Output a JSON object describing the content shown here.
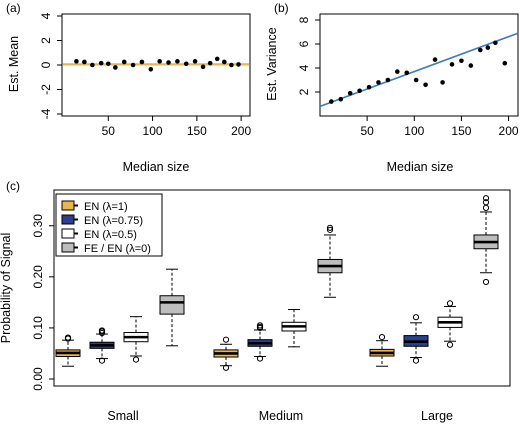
{
  "chart_data": [
    {
      "panel_label": "(a)",
      "type": "scatter",
      "xlabel": "Median size",
      "ylabel": "Est. Mean",
      "xlim": [
        0,
        210
      ],
      "ylim": [
        -4,
        4
      ],
      "x_ticks": [
        "50",
        "100",
        "150",
        "200"
      ],
      "y_ticks": [
        "-4",
        "-2",
        "0",
        "2",
        "4"
      ],
      "reference_line": {
        "y": 0.05,
        "color": "#e9b64f"
      },
      "points": [
        {
          "x": 14,
          "y": 0.3
        },
        {
          "x": 23,
          "y": 0.25
        },
        {
          "x": 32,
          "y": 0.0
        },
        {
          "x": 42,
          "y": 0.15
        },
        {
          "x": 50,
          "y": 0.1
        },
        {
          "x": 58,
          "y": -0.2
        },
        {
          "x": 68,
          "y": 0.25
        },
        {
          "x": 78,
          "y": 0.0
        },
        {
          "x": 88,
          "y": 0.25
        },
        {
          "x": 98,
          "y": -0.35
        },
        {
          "x": 108,
          "y": 0.3
        },
        {
          "x": 118,
          "y": 0.2
        },
        {
          "x": 128,
          "y": 0.3
        },
        {
          "x": 138,
          "y": 0.1
        },
        {
          "x": 148,
          "y": 0.3
        },
        {
          "x": 157,
          "y": -0.15
        },
        {
          "x": 165,
          "y": 0.15
        },
        {
          "x": 173,
          "y": 0.5
        },
        {
          "x": 181,
          "y": 0.25
        },
        {
          "x": 189,
          "y": 0.0
        },
        {
          "x": 197,
          "y": 0.05
        }
      ]
    },
    {
      "panel_label": "(b)",
      "type": "scatter",
      "xlabel": "Median size",
      "ylabel": "Est. Variance",
      "xlim": [
        0,
        210
      ],
      "ylim": [
        0,
        8
      ],
      "x_ticks": [
        "50",
        "100",
        "150",
        "200"
      ],
      "y_ticks": [
        "2",
        "4",
        "6",
        "8"
      ],
      "fit_line": {
        "x0": 0,
        "y0": 0.8,
        "x1": 210,
        "y1": 6.9,
        "color": "#3b7dbb"
      },
      "points": [
        {
          "x": 12,
          "y": 1.2
        },
        {
          "x": 22,
          "y": 1.4
        },
        {
          "x": 32,
          "y": 1.9
        },
        {
          "x": 42,
          "y": 2.1
        },
        {
          "x": 52,
          "y": 2.4
        },
        {
          "x": 62,
          "y": 2.8
        },
        {
          "x": 72,
          "y": 3.0
        },
        {
          "x": 82,
          "y": 3.7
        },
        {
          "x": 92,
          "y": 3.6
        },
        {
          "x": 102,
          "y": 3.0
        },
        {
          "x": 112,
          "y": 2.6
        },
        {
          "x": 122,
          "y": 4.7
        },
        {
          "x": 130,
          "y": 2.8
        },
        {
          "x": 140,
          "y": 4.3
        },
        {
          "x": 150,
          "y": 4.6
        },
        {
          "x": 160,
          "y": 4.2
        },
        {
          "x": 170,
          "y": 5.5
        },
        {
          "x": 178,
          "y": 5.7
        },
        {
          "x": 186,
          "y": 6.1
        },
        {
          "x": 196,
          "y": 4.4
        }
      ]
    },
    {
      "panel_label": "(c)",
      "type": "boxplot",
      "ylabel": "Probability of Signal",
      "ylim": [
        0,
        0.37
      ],
      "y_ticks": [
        "0.00",
        "0.10",
        "0.20",
        "0.30"
      ],
      "groups": [
        "Small",
        "Medium",
        "Large"
      ],
      "legend_position": "top-left",
      "series": [
        {
          "name": "EN (λ=1)",
          "color": "#e9b64f"
        },
        {
          "name": "EN (λ=0.75)",
          "color": "#2b3f8c"
        },
        {
          "name": "EN (λ=0.5)",
          "color": "#ffffff"
        },
        {
          "name": "FE / EN (λ=0)",
          "color": "#bdbdbd"
        }
      ],
      "boxes": [
        [
          {
            "min": 0.025,
            "q1": 0.044,
            "median": 0.051,
            "q3": 0.057,
            "max": 0.076,
            "outliers": [
              0.079,
              0.081
            ]
          },
          {
            "min": 0.04,
            "q1": 0.06,
            "median": 0.066,
            "q3": 0.072,
            "max": 0.088,
            "outliers": [
              0.036,
              0.09,
              0.093,
              0.095
            ]
          },
          {
            "min": 0.045,
            "q1": 0.073,
            "median": 0.082,
            "q3": 0.091,
            "max": 0.122,
            "outliers": [
              0.038
            ]
          },
          {
            "min": 0.065,
            "q1": 0.127,
            "median": 0.15,
            "q3": 0.163,
            "max": 0.215,
            "outliers": []
          }
        ],
        [
          {
            "min": 0.026,
            "q1": 0.043,
            "median": 0.05,
            "q3": 0.057,
            "max": 0.068,
            "outliers": [
              0.022,
              0.077
            ]
          },
          {
            "min": 0.044,
            "q1": 0.064,
            "median": 0.07,
            "q3": 0.077,
            "max": 0.096,
            "outliers": [
              0.04,
              0.1,
              0.102,
              0.105
            ]
          },
          {
            "min": 0.063,
            "q1": 0.094,
            "median": 0.103,
            "q3": 0.111,
            "max": 0.136,
            "outliers": []
          },
          {
            "min": 0.16,
            "q1": 0.208,
            "median": 0.221,
            "q3": 0.234,
            "max": 0.282,
            "outliers": [
              0.292,
              0.296
            ]
          }
        ],
        [
          {
            "min": 0.025,
            "q1": 0.045,
            "median": 0.051,
            "q3": 0.058,
            "max": 0.075,
            "outliers": [
              0.082
            ]
          },
          {
            "min": 0.042,
            "q1": 0.064,
            "median": 0.073,
            "q3": 0.085,
            "max": 0.11,
            "outliers": [
              0.036,
              0.121
            ]
          },
          {
            "min": 0.074,
            "q1": 0.101,
            "median": 0.111,
            "q3": 0.121,
            "max": 0.142,
            "outliers": [
              0.067,
              0.148
            ]
          },
          {
            "min": 0.208,
            "q1": 0.255,
            "median": 0.268,
            "q3": 0.282,
            "max": 0.327,
            "outliers": [
              0.19,
              0.335,
              0.346,
              0.354
            ]
          }
        ]
      ]
    }
  ]
}
